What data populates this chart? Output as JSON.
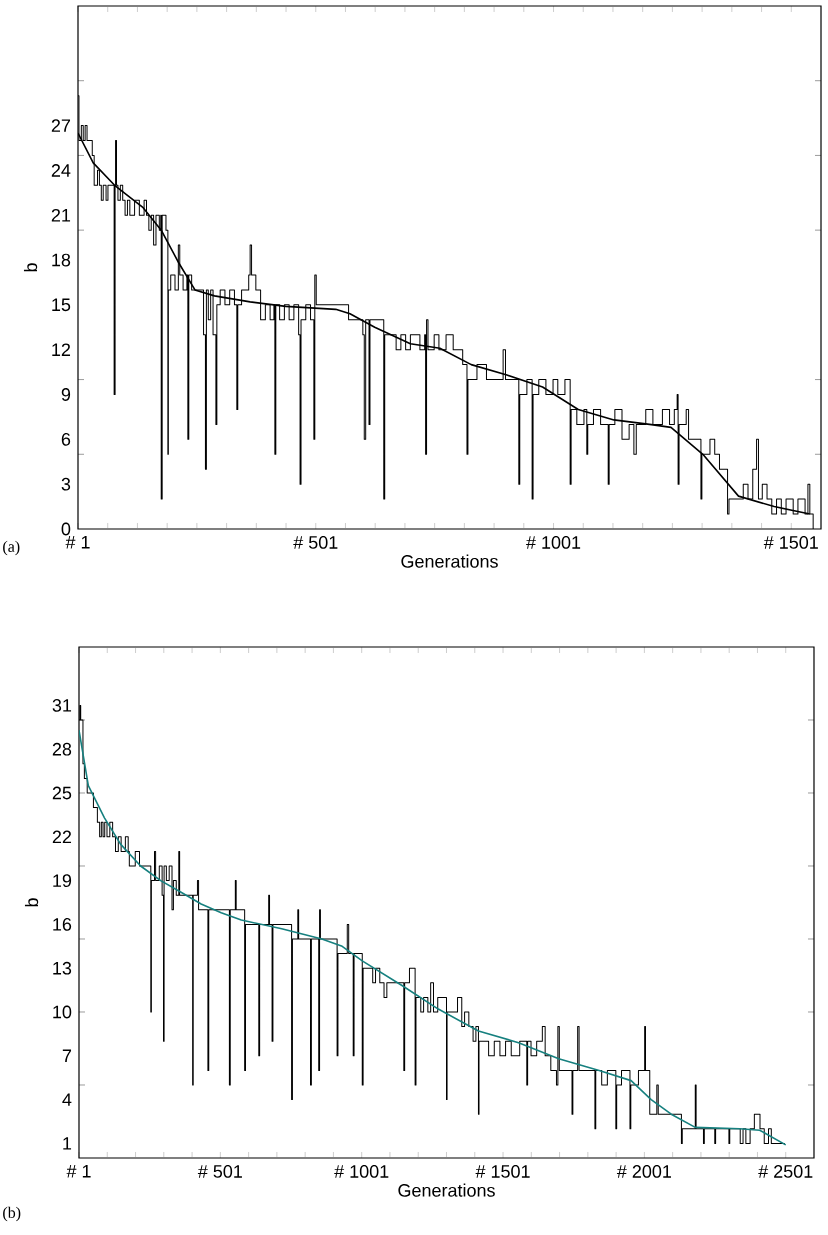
{
  "chart_data": [
    {
      "type": "line",
      "xlabel": "Generations",
      "ylabel": "b",
      "annotations": [
        "(a)"
      ],
      "xlim": [
        1,
        1563.5
      ],
      "ylim": [
        0,
        35
      ],
      "xticks": [
        {
          "value": 1,
          "label": "# 1"
        },
        {
          "value": 63.5,
          "label": null
        },
        {
          "value": 126,
          "label": null
        },
        {
          "value": 188.5,
          "label": null
        },
        {
          "value": 251,
          "label": null
        },
        {
          "value": 313.5,
          "label": null
        },
        {
          "value": 376,
          "label": null
        },
        {
          "value": 438.5,
          "label": null
        },
        {
          "value": 501,
          "label": "# 501"
        },
        {
          "value": 563.5,
          "label": null
        },
        {
          "value": 626,
          "label": null
        },
        {
          "value": 688.5,
          "label": null
        },
        {
          "value": 751,
          "label": null
        },
        {
          "value": 813.5,
          "label": null
        },
        {
          "value": 876,
          "label": null
        },
        {
          "value": 938.5,
          "label": null
        },
        {
          "value": 1001,
          "label": "# 1001"
        },
        {
          "value": 1063.5,
          "label": null
        },
        {
          "value": 1126,
          "label": null
        },
        {
          "value": 1188.5,
          "label": null
        },
        {
          "value": 1251,
          "label": null
        },
        {
          "value": 1313.5,
          "label": null
        },
        {
          "value": 1376,
          "label": null
        },
        {
          "value": 1438.5,
          "label": null
        },
        {
          "value": 1501,
          "label": "# 1501"
        }
      ],
      "yticks": [
        0,
        3,
        6,
        9,
        12,
        15,
        18,
        21,
        24,
        27,
        {
          "value": 5,
          "label": null
        },
        {
          "value": 10,
          "label": null
        },
        {
          "value": 20,
          "label": null
        },
        {
          "value": 25,
          "label": null
        },
        {
          "value": 30,
          "label": null
        }
      ],
      "series": [
        {
          "type": "step",
          "color": "#000000",
          "x": [
            1,
            3,
            8,
            12,
            16,
            20,
            30,
            31,
            35,
            42,
            46,
            50,
            54,
            60,
            64,
            76,
            77,
            79,
            80,
            82,
            85,
            90,
            95,
            100,
            105,
            110,
            120,
            130,
            140,
            145,
            150,
            155,
            160,
            165,
            172,
            175,
            176,
            178,
            186,
            190,
            191,
            196,
            205,
            212,
            215,
            222,
            230,
            232,
            234,
            240,
            260,
            265,
            269,
            271,
            275,
            280,
            285,
            291,
            293,
            300,
            310,
            320,
            330,
            335,
            337,
            345,
            355,
            360,
            363,
            366,
            375,
            382,
            385,
            395,
            405,
            413,
            415,
            417,
            425,
            435,
            445,
            455,
            465,
            468,
            470,
            480,
            490,
            497,
            499,
            502,
            520,
            540,
            565,
            570,
            590,
            600,
            603,
            606,
            613,
            615,
            640,
            644,
            646,
            665,
            670,
            680,
            690,
            700,
            720,
            730,
            732,
            734,
            737,
            750,
            760,
            775,
            790,
            800,
            810,
            819,
            821,
            840,
            860,
            880,
            895,
            900,
            920,
            928,
            930,
            945,
            956,
            958,
            970,
            985,
            1000,
            1010,
            1025,
            1036,
            1038,
            1050,
            1065,
            1071,
            1073,
            1085,
            1100,
            1116,
            1118,
            1130,
            1145,
            1160,
            1170,
            1175,
            1195,
            1210,
            1230,
            1245,
            1255,
            1261,
            1263,
            1265,
            1280,
            1285,
            1300,
            1311,
            1313,
            1330,
            1340,
            1350,
            1360,
            1367,
            1370,
            1390,
            1400,
            1410,
            1420,
            1428,
            1432,
            1440,
            1450,
            1460,
            1470,
            1480,
            1490,
            1505,
            1515,
            1530,
            1536,
            1540,
            1547
          ],
          "values": [
            29,
            26,
            27,
            26,
            27,
            26,
            26,
            25,
            23,
            24,
            23,
            22,
            23,
            22,
            23,
            23,
            9,
            23,
            26,
            23,
            22,
            23,
            22,
            21,
            22,
            21,
            22,
            21,
            22,
            21,
            20,
            21,
            19,
            21,
            20,
            21,
            2,
            21,
            20,
            5,
            16,
            17,
            16,
            19,
            17,
            16,
            17,
            6,
            17,
            16,
            16,
            13,
            4,
            16,
            14,
            16,
            13,
            7,
            15,
            16,
            15,
            16,
            15,
            8,
            15,
            16,
            16,
            17,
            19,
            17,
            16,
            16,
            14,
            15,
            14,
            15,
            5,
            15,
            14,
            15,
            14,
            15,
            13,
            3,
            14,
            15,
            14,
            6,
            17,
            15,
            15,
            15,
            15,
            14,
            14,
            13,
            6,
            14,
            7,
            14,
            14,
            2,
            13,
            13,
            12,
            13,
            12,
            13,
            12,
            13,
            5,
            14,
            12,
            13,
            12,
            13,
            12,
            12,
            11,
            5,
            10,
            11,
            10,
            10,
            12,
            10,
            10,
            3,
            9,
            10,
            2,
            9,
            10,
            9,
            10,
            9,
            10,
            3,
            8,
            7,
            8,
            5,
            7,
            8,
            7,
            3,
            7,
            8,
            6,
            7,
            5,
            7,
            8,
            7,
            8,
            7,
            8,
            9,
            3,
            7,
            8,
            6,
            6,
            2,
            5,
            6,
            5,
            4,
            4,
            1,
            2,
            2,
            3,
            2,
            4,
            6,
            2,
            3,
            2,
            1,
            2,
            1,
            2,
            1,
            2,
            1,
            3,
            1,
            0
          ]
        },
        {
          "color": "#000000",
          "x": [
            1,
            33,
            78,
            138,
            176,
            213,
            247,
            288,
            363,
            438,
            543,
            573,
            625,
            700,
            762,
            828,
            903,
            978,
            1053,
            1128,
            1203,
            1248,
            1315,
            1390,
            1465,
            1540
          ],
          "values": [
            26.5,
            24.5,
            23,
            21.5,
            20,
            17.8,
            16,
            15.6,
            15.2,
            14.9,
            14.7,
            14.4,
            13.5,
            12.4,
            12.1,
            11.0,
            10.3,
            9.5,
            8.0,
            7.3,
            7.0,
            6.8,
            5.0,
            2.2,
            1.5,
            1.0
          ]
        }
      ]
    },
    {
      "type": "line",
      "xlabel": "Generations",
      "ylabel": "b",
      "annotations": [
        "(b)"
      ],
      "xlim": [
        1,
        2601
      ],
      "ylim": [
        0,
        35
      ],
      "xticks": [
        {
          "value": 1,
          "label": "# 1"
        },
        {
          "value": 101,
          "label": null
        },
        {
          "value": 201,
          "label": null
        },
        {
          "value": 301,
          "label": null
        },
        {
          "value": 401,
          "label": null
        },
        {
          "value": 501,
          "label": "# 501"
        },
        {
          "value": 601,
          "label": null
        },
        {
          "value": 701,
          "label": null
        },
        {
          "value": 801,
          "label": null
        },
        {
          "value": 901,
          "label": null
        },
        {
          "value": 1001,
          "label": "# 1001"
        },
        {
          "value": 1101,
          "label": null
        },
        {
          "value": 1201,
          "label": null
        },
        {
          "value": 1301,
          "label": null
        },
        {
          "value": 1401,
          "label": null
        },
        {
          "value": 1501,
          "label": "# 1501"
        },
        {
          "value": 1601,
          "label": null
        },
        {
          "value": 1701,
          "label": null
        },
        {
          "value": 1801,
          "label": null
        },
        {
          "value": 1901,
          "label": null
        },
        {
          "value": 2001,
          "label": "# 2001"
        },
        {
          "value": 2101,
          "label": null
        },
        {
          "value": 2201,
          "label": null
        },
        {
          "value": 2301,
          "label": null
        },
        {
          "value": 2401,
          "label": null
        },
        {
          "value": 2501,
          "label": "# 2501"
        }
      ],
      "yticks": [
        1,
        4,
        7,
        10,
        13,
        16,
        19,
        22,
        25,
        28,
        31,
        {
          "value": 5,
          "label": null
        },
        {
          "value": 10,
          "label": null
        },
        {
          "value": 15,
          "label": null
        },
        {
          "value": 20,
          "label": null
        },
        {
          "value": 25,
          "label": null
        },
        {
          "value": 30,
          "label": null
        }
      ],
      "series": [
        {
          "type": "step",
          "color": "#000000",
          "x": [
            1,
            4,
            7,
            15,
            20,
            30,
            52,
            66,
            74,
            80,
            86,
            92,
            100,
            110,
            120,
            130,
            140,
            150,
            165,
            175,
            179,
            200,
            215,
            255,
            257,
            268,
            272,
            285,
            295,
            300,
            302,
            310,
            320,
            330,
            335,
            345,
            354,
            357,
            400,
            403,
            405,
            420,
            424,
            457,
            460,
            500,
            533,
            536,
            554,
            557,
            580,
            587,
            590,
            620,
            637,
            640,
            672,
            675,
            684,
            687,
            720,
            753,
            756,
            775,
            778,
            820,
            823,
            849,
            852,
            855,
            900,
            914,
            917,
            945,
            950,
            955,
            971,
            974,
            1003,
            1006,
            1030,
            1040,
            1050,
            1065,
            1080,
            1090,
            1120,
            1150,
            1153,
            1170,
            1190,
            1193,
            1210,
            1220,
            1235,
            1245,
            1255,
            1270,
            1290,
            1301,
            1303,
            1330,
            1340,
            1355,
            1365,
            1380,
            1395,
            1405,
            1414,
            1416,
            1440,
            1450,
            1470,
            1490,
            1510,
            1530,
            1560,
            1585,
            1588,
            1600,
            1620,
            1640,
            1650,
            1670,
            1690,
            1695,
            1700,
            1745,
            1748,
            1765,
            1770,
            1800,
            1826,
            1829,
            1850,
            1870,
            1900,
            1903,
            1920,
            1950,
            1953,
            1980,
            2002,
            2005,
            2020,
            2045,
            2050,
            2110,
            2132,
            2135,
            2181,
            2184,
            2210,
            2213,
            2250,
            2253,
            2300,
            2303,
            2340,
            2350,
            2360,
            2375,
            2390,
            2410,
            2425,
            2440,
            2450,
            2470,
            2498
          ],
          "values": [
            30,
            31,
            30,
            27,
            26,
            25,
            24,
            23,
            22,
            23,
            22,
            23,
            22,
            23,
            22,
            21,
            22,
            21,
            22,
            21,
            20,
            21,
            20,
            10,
            19,
            21,
            19,
            20,
            18,
            8,
            20,
            19,
            20,
            17,
            19,
            18,
            21,
            18,
            18,
            5,
            18,
            19,
            17,
            6,
            17,
            17,
            5,
            17,
            19,
            17,
            17,
            6,
            16,
            16,
            7,
            16,
            18,
            16,
            8,
            16,
            16,
            4,
            15,
            17,
            15,
            5,
            15,
            6,
            17,
            15,
            15,
            7,
            14,
            14,
            16,
            14,
            7,
            14,
            5,
            13,
            13,
            12,
            13,
            12,
            11,
            12,
            12,
            6,
            12,
            13,
            5,
            11,
            10,
            11,
            10,
            12,
            10,
            11,
            11,
            4,
            10,
            10,
            11,
            9,
            10,
            9,
            8,
            9,
            3,
            8,
            8,
            7,
            8,
            7,
            8,
            7,
            8,
            5,
            8,
            7,
            8,
            9,
            7,
            6,
            5,
            9,
            6,
            3,
            6,
            9,
            6,
            6,
            2,
            6,
            5,
            6,
            2,
            5,
            6,
            2,
            5,
            6,
            9,
            6,
            3,
            5,
            3,
            3,
            1,
            2,
            5,
            2,
            1,
            2,
            1,
            2,
            1,
            2,
            1,
            2,
            1,
            2,
            3,
            2,
            1,
            2,
            1,
            1,
            1
          ]
        },
        {
          "color": "#16807f",
          "x": [
            1,
            34,
            91,
            148,
            219,
            290,
            362,
            433,
            504,
            575,
            718,
            860,
            932,
            1003,
            1145,
            1272,
            1414,
            1556,
            1698,
            1841,
            1954,
            2025,
            2096,
            2181,
            2338,
            2409,
            2501
          ],
          "values": [
            29.3,
            25.5,
            23.3,
            21.5,
            20.0,
            19.0,
            18.2,
            17.4,
            16.8,
            16.3,
            15.7,
            15.0,
            14.5,
            13.5,
            11.8,
            10.2,
            8.7,
            7.9,
            6.8,
            6.0,
            5.3,
            4.0,
            3.0,
            2.1,
            2.0,
            1.9,
            0.9
          ]
        }
      ]
    }
  ]
}
